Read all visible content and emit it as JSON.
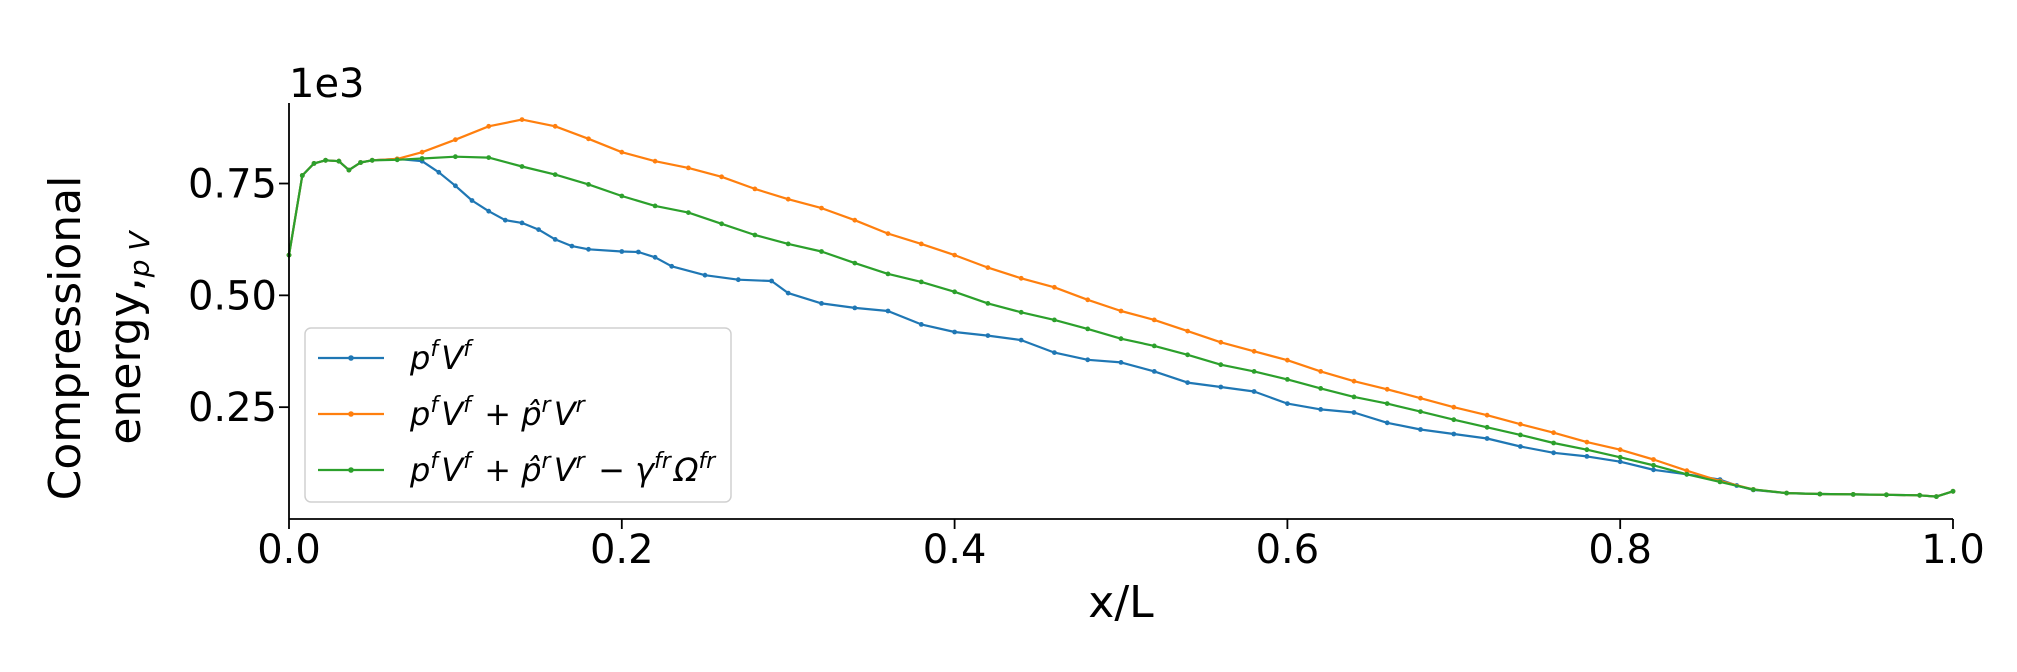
{
  "chart_data": {
    "type": "line",
    "xlabel": "x/L",
    "ylabel_line1": "Compressional",
    "ylabel_line2": "energy,",
    "ylabel_sub": "p V",
    "y_offset_label": "1e3",
    "xlim": [
      0,
      1
    ],
    "ylim": [
      0,
      0.93
    ],
    "x_ticks": [
      "0.0",
      "0.2",
      "0.4",
      "0.6",
      "0.8",
      "1.0"
    ],
    "x_tick_values": [
      0,
      0.2,
      0.4,
      0.6,
      0.8,
      1.0
    ],
    "y_ticks": [
      "0.25",
      "0.50",
      "0.75"
    ],
    "y_tick_values": [
      0.25,
      0.5,
      0.75
    ],
    "grid": false,
    "legend_position": "lower-left",
    "series": [
      {
        "name": "pᶠVᶠ",
        "legend_base": [
          "p",
          "V"
        ],
        "legend_sup": [
          "f",
          "f"
        ],
        "color": "#1f77b4",
        "points": [
          [
            0,
            0.59
          ],
          [
            0.008,
            0.768
          ],
          [
            0.015,
            0.795
          ],
          [
            0.022,
            0.802
          ],
          [
            0.03,
            0.8
          ],
          [
            0.036,
            0.78
          ],
          [
            0.043,
            0.797
          ],
          [
            0.05,
            0.802
          ],
          [
            0.065,
            0.805
          ],
          [
            0.08,
            0.8
          ],
          [
            0.09,
            0.775
          ],
          [
            0.1,
            0.745
          ],
          [
            0.11,
            0.712
          ],
          [
            0.12,
            0.688
          ],
          [
            0.13,
            0.668
          ],
          [
            0.14,
            0.662
          ],
          [
            0.15,
            0.647
          ],
          [
            0.16,
            0.625
          ],
          [
            0.17,
            0.61
          ],
          [
            0.18,
            0.603
          ],
          [
            0.2,
            0.598
          ],
          [
            0.21,
            0.597
          ],
          [
            0.22,
            0.585
          ],
          [
            0.23,
            0.565
          ],
          [
            0.25,
            0.545
          ],
          [
            0.27,
            0.535
          ],
          [
            0.29,
            0.532
          ],
          [
            0.3,
            0.505
          ],
          [
            0.32,
            0.482
          ],
          [
            0.34,
            0.472
          ],
          [
            0.36,
            0.465
          ],
          [
            0.38,
            0.435
          ],
          [
            0.4,
            0.418
          ],
          [
            0.42,
            0.41
          ],
          [
            0.44,
            0.4
          ],
          [
            0.46,
            0.372
          ],
          [
            0.48,
            0.356
          ],
          [
            0.5,
            0.35
          ],
          [
            0.52,
            0.33
          ],
          [
            0.54,
            0.305
          ],
          [
            0.56,
            0.295
          ],
          [
            0.58,
            0.285
          ],
          [
            0.6,
            0.258
          ],
          [
            0.62,
            0.245
          ],
          [
            0.64,
            0.238
          ],
          [
            0.66,
            0.215
          ],
          [
            0.68,
            0.2
          ],
          [
            0.7,
            0.19
          ],
          [
            0.72,
            0.18
          ],
          [
            0.74,
            0.162
          ],
          [
            0.76,
            0.148
          ],
          [
            0.78,
            0.14
          ],
          [
            0.8,
            0.128
          ],
          [
            0.82,
            0.11
          ],
          [
            0.84,
            0.1
          ],
          [
            0.86,
            0.088
          ],
          [
            0.87,
            0.075
          ],
          [
            0.88,
            0.065
          ],
          [
            0.9,
            0.058
          ],
          [
            0.92,
            0.056
          ],
          [
            0.94,
            0.055
          ],
          [
            0.96,
            0.054
          ],
          [
            0.98,
            0.053
          ],
          [
            0.99,
            0.05
          ],
          [
            1.0,
            0.062
          ]
        ]
      },
      {
        "name": "pᶠVᶠ + p̂ʳVʳ",
        "legend_base": [
          "p",
          "V",
          " + ",
          "p̂",
          "V"
        ],
        "legend_sup": [
          "f",
          "f",
          "",
          "r",
          "r"
        ],
        "color": "#ff7f0e",
        "points": [
          [
            0,
            0.59
          ],
          [
            0.008,
            0.768
          ],
          [
            0.015,
            0.795
          ],
          [
            0.022,
            0.802
          ],
          [
            0.03,
            0.8
          ],
          [
            0.036,
            0.78
          ],
          [
            0.043,
            0.797
          ],
          [
            0.05,
            0.802
          ],
          [
            0.065,
            0.805
          ],
          [
            0.08,
            0.82
          ],
          [
            0.1,
            0.848
          ],
          [
            0.12,
            0.878
          ],
          [
            0.14,
            0.893
          ],
          [
            0.16,
            0.878
          ],
          [
            0.18,
            0.85
          ],
          [
            0.2,
            0.82
          ],
          [
            0.22,
            0.8
          ],
          [
            0.24,
            0.785
          ],
          [
            0.26,
            0.765
          ],
          [
            0.28,
            0.738
          ],
          [
            0.3,
            0.715
          ],
          [
            0.32,
            0.695
          ],
          [
            0.34,
            0.668
          ],
          [
            0.36,
            0.638
          ],
          [
            0.38,
            0.615
          ],
          [
            0.4,
            0.59
          ],
          [
            0.42,
            0.562
          ],
          [
            0.44,
            0.538
          ],
          [
            0.46,
            0.518
          ],
          [
            0.48,
            0.49
          ],
          [
            0.5,
            0.465
          ],
          [
            0.52,
            0.445
          ],
          [
            0.54,
            0.42
          ],
          [
            0.56,
            0.395
          ],
          [
            0.58,
            0.375
          ],
          [
            0.6,
            0.355
          ],
          [
            0.62,
            0.33
          ],
          [
            0.64,
            0.308
          ],
          [
            0.66,
            0.29
          ],
          [
            0.68,
            0.27
          ],
          [
            0.7,
            0.25
          ],
          [
            0.72,
            0.232
          ],
          [
            0.74,
            0.212
          ],
          [
            0.76,
            0.193
          ],
          [
            0.78,
            0.172
          ],
          [
            0.8,
            0.155
          ],
          [
            0.82,
            0.133
          ],
          [
            0.84,
            0.108
          ],
          [
            0.86,
            0.085
          ],
          [
            0.88,
            0.066
          ],
          [
            0.9,
            0.058
          ],
          [
            0.92,
            0.056
          ],
          [
            0.94,
            0.055
          ],
          [
            0.96,
            0.054
          ],
          [
            0.98,
            0.053
          ],
          [
            0.99,
            0.05
          ],
          [
            1.0,
            0.062
          ]
        ]
      },
      {
        "name": "pᶠVᶠ + p̂ʳVʳ − γᶠʳΩᶠʳ",
        "legend_base": [
          "p",
          "V",
          " + ",
          "p̂",
          "V",
          " − ",
          "γ",
          "Ω"
        ],
        "legend_sup": [
          "f",
          "f",
          "",
          "r",
          "r",
          "",
          "fr",
          "fr"
        ],
        "color": "#2ca02c",
        "points": [
          [
            0,
            0.59
          ],
          [
            0.008,
            0.768
          ],
          [
            0.015,
            0.795
          ],
          [
            0.022,
            0.802
          ],
          [
            0.03,
            0.8
          ],
          [
            0.036,
            0.78
          ],
          [
            0.043,
            0.797
          ],
          [
            0.05,
            0.802
          ],
          [
            0.065,
            0.803
          ],
          [
            0.08,
            0.806
          ],
          [
            0.1,
            0.81
          ],
          [
            0.12,
            0.808
          ],
          [
            0.14,
            0.788
          ],
          [
            0.16,
            0.77
          ],
          [
            0.18,
            0.748
          ],
          [
            0.2,
            0.722
          ],
          [
            0.22,
            0.7
          ],
          [
            0.24,
            0.685
          ],
          [
            0.26,
            0.66
          ],
          [
            0.28,
            0.635
          ],
          [
            0.3,
            0.615
          ],
          [
            0.32,
            0.598
          ],
          [
            0.34,
            0.572
          ],
          [
            0.36,
            0.548
          ],
          [
            0.38,
            0.53
          ],
          [
            0.4,
            0.508
          ],
          [
            0.42,
            0.482
          ],
          [
            0.44,
            0.462
          ],
          [
            0.46,
            0.445
          ],
          [
            0.48,
            0.425
          ],
          [
            0.5,
            0.403
          ],
          [
            0.52,
            0.387
          ],
          [
            0.54,
            0.367
          ],
          [
            0.56,
            0.345
          ],
          [
            0.58,
            0.33
          ],
          [
            0.6,
            0.312
          ],
          [
            0.62,
            0.292
          ],
          [
            0.64,
            0.273
          ],
          [
            0.66,
            0.258
          ],
          [
            0.68,
            0.24
          ],
          [
            0.7,
            0.222
          ],
          [
            0.72,
            0.205
          ],
          [
            0.74,
            0.188
          ],
          [
            0.76,
            0.17
          ],
          [
            0.78,
            0.155
          ],
          [
            0.8,
            0.138
          ],
          [
            0.82,
            0.12
          ],
          [
            0.84,
            0.1
          ],
          [
            0.86,
            0.083
          ],
          [
            0.88,
            0.066
          ],
          [
            0.9,
            0.058
          ],
          [
            0.92,
            0.056
          ],
          [
            0.94,
            0.055
          ],
          [
            0.96,
            0.054
          ],
          [
            0.98,
            0.053
          ],
          [
            0.99,
            0.05
          ],
          [
            1.0,
            0.062
          ]
        ]
      }
    ]
  }
}
